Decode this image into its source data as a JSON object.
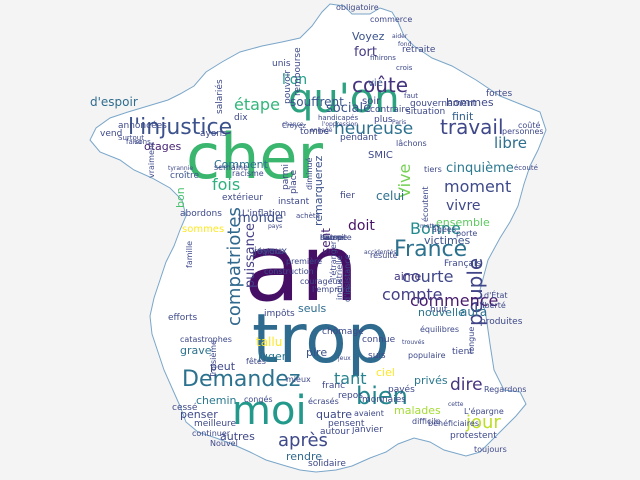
{
  "colors": {
    "background": "#f4f4f4",
    "map_fill": "#ffffff",
    "map_outline": "#7aa6c9"
  },
  "wordcloud": {
    "shape": "france-map",
    "words": [
      {
        "text": "cher",
        "color": "#3bb66f"
      },
      {
        "text": "an",
        "color": "#450f66"
      },
      {
        "text": "trop",
        "color": "#2e6b8e"
      },
      {
        "text": "moi",
        "color": "#22998b"
      },
      {
        "text": "qu'on",
        "color": "#2ca280"
      },
      {
        "text": "l'injustice",
        "color": "#3b528b"
      },
      {
        "text": "coûte",
        "color": "#46337e"
      },
      {
        "text": "travail",
        "color": "#3f4889"
      },
      {
        "text": "heureuse",
        "color": "#2d718e"
      },
      {
        "text": "bien",
        "color": "#23888e"
      },
      {
        "text": "Demandez",
        "color": "#2c728e"
      },
      {
        "text": "France",
        "color": "#2c728e"
      },
      {
        "text": "Bonne",
        "color": "#238a8d"
      },
      {
        "text": "peuple",
        "color": "#404587"
      },
      {
        "text": "compatriotes",
        "color": "#31688e"
      },
      {
        "text": "moment",
        "color": "#3e4a89"
      },
      {
        "text": "courte",
        "color": "#3f4788"
      },
      {
        "text": "commence",
        "color": "#481a6c"
      },
      {
        "text": "jour",
        "color": "#bddf26"
      },
      {
        "text": "dire",
        "color": "#46337e"
      },
      {
        "text": "tant",
        "color": "#26838f"
      },
      {
        "text": "après",
        "color": "#3e4989"
      },
      {
        "text": "compte",
        "color": "#423f85"
      },
      {
        "text": "étape",
        "color": "#32b67a"
      },
      {
        "text": "fois",
        "color": "#2db27d"
      },
      {
        "text": "cinquième",
        "color": "#2a788e"
      },
      {
        "text": "l'on",
        "color": "#1f9e89"
      },
      {
        "text": "sociale",
        "color": "#3a538b"
      },
      {
        "text": "fort",
        "color": "#443983"
      },
      {
        "text": "Voyez",
        "color": "#3b528b"
      },
      {
        "text": "libre",
        "color": "#2e6e8e"
      },
      {
        "text": "vivre",
        "color": "#3f4889"
      },
      {
        "text": "Vive",
        "color": "#75d054"
      },
      {
        "text": "puissance",
        "color": "#433e85"
      },
      {
        "text": "monde",
        "color": "#3c4f8a"
      },
      {
        "text": "doit",
        "color": "#471365"
      },
      {
        "text": "souffrent",
        "color": "#39568c"
      },
      {
        "text": "d'espoir",
        "color": "#2f6c8e"
      },
      {
        "text": "otages",
        "color": "#482475"
      },
      {
        "text": "Comment",
        "color": "#2c728e"
      },
      {
        "text": "celui",
        "color": "#2d708e"
      },
      {
        "text": "hommes",
        "color": "#3e4989"
      },
      {
        "text": "remarquerez",
        "color": "#3b528b"
      },
      {
        "text": "finit",
        "color": "#34618d"
      },
      {
        "text": "ensemble",
        "color": "#5ec962"
      },
      {
        "text": "victimes",
        "color": "#3b528b"
      },
      {
        "text": "aime",
        "color": "#453882"
      },
      {
        "text": "nouvelle",
        "color": "#2a768e"
      },
      {
        "text": "seuls",
        "color": "#2e6d8e"
      },
      {
        "text": "sent",
        "color": "#482677"
      },
      {
        "text": "tallu",
        "color": "#fde725"
      },
      {
        "text": "juger",
        "color": "#2a788e"
      },
      {
        "text": "pire",
        "color": "#3b528b"
      },
      {
        "text": "grave",
        "color": "#2c728e"
      },
      {
        "text": "peut",
        "color": "#3e4989"
      },
      {
        "text": "chemin",
        "color": "#2a788e"
      },
      {
        "text": "penser",
        "color": "#3e4a89"
      },
      {
        "text": "autres",
        "color": "#3f4788"
      },
      {
        "text": "rendre",
        "color": "#31688e"
      },
      {
        "text": "malades",
        "color": "#a5db36"
      },
      {
        "text": "quatre",
        "color": "#3e4a89"
      },
      {
        "text": "privés",
        "color": "#2a788e"
      },
      {
        "text": "aura",
        "color": "#2d718e"
      },
      {
        "text": "bon",
        "color": "#4ac16d"
      },
      {
        "text": "joyeux",
        "color": "#3e4989"
      },
      {
        "text": "sommes",
        "color": "#fde725"
      },
      {
        "text": "ciel",
        "color": "#fde725"
      },
      {
        "text": "vie",
        "color": "#3b528b"
      },
      {
        "text": "soir",
        "color": "#3e4a89"
      },
      {
        "text": "croître",
        "color": "#3a548c"
      },
      {
        "text": "pendant",
        "color": "#3e4a89"
      },
      {
        "text": "SMIC",
        "color": "#3e4989"
      },
      {
        "text": "dix",
        "color": "#3e4989"
      },
      {
        "text": "unis",
        "color": "#3e4989"
      },
      {
        "text": "tombé",
        "color": "#3e4989"
      },
      {
        "text": "ayons",
        "color": "#3e4989"
      },
      {
        "text": "annoncées",
        "color": "#3e4989"
      },
      {
        "text": "vend",
        "color": "#3e4989"
      },
      {
        "text": "extérieur",
        "color": "#3e4989"
      },
      {
        "text": "abordons",
        "color": "#3e4989"
      },
      {
        "text": "L'inflation",
        "color": "#3e4989"
      },
      {
        "text": "instant",
        "color": "#3e4989"
      },
      {
        "text": "parmi",
        "color": "#3e4989"
      },
      {
        "text": "place",
        "color": "#3e4989"
      },
      {
        "text": "Français",
        "color": "#3e4989"
      },
      {
        "text": "huit",
        "color": "#3e4989"
      },
      {
        "text": "produites",
        "color": "#3e4989"
      },
      {
        "text": "tient",
        "color": "#3e4989"
      },
      {
        "text": "protestent",
        "color": "#3e4989"
      },
      {
        "text": "cessé",
        "color": "#3e4989"
      },
      {
        "text": "meilleure",
        "color": "#3e4989"
      },
      {
        "text": "pensent",
        "color": "#3e4989"
      },
      {
        "text": "janvier",
        "color": "#3e4989"
      },
      {
        "text": "autour",
        "color": "#3e4989"
      },
      {
        "text": "solidaire",
        "color": "#3e4989"
      },
      {
        "text": "monnaies",
        "color": "#3e4989"
      },
      {
        "text": "repos",
        "color": "#3e4989"
      },
      {
        "text": "chômage",
        "color": "#3e4989"
      },
      {
        "text": "connue",
        "color": "#3e4989"
      },
      {
        "text": "suis",
        "color": "#3e4989"
      },
      {
        "text": "payés",
        "color": "#3e4989"
      },
      {
        "text": "franc",
        "color": "#3e4989"
      },
      {
        "text": "efforts",
        "color": "#3e4989"
      },
      {
        "text": "impôts",
        "color": "#3e4989"
      },
      {
        "text": "fier",
        "color": "#3e4989"
      },
      {
        "text": "fortes",
        "color": "#3e4989"
      },
      {
        "text": "plus",
        "color": "#3e4989"
      },
      {
        "text": "situation",
        "color": "#3e4989"
      },
      {
        "text": "gouvernement",
        "color": "#3e4989"
      },
      {
        "text": "contraire",
        "color": "#3e4989"
      },
      {
        "text": "rembourse",
        "color": "#3e4989"
      },
      {
        "text": "pouvoir",
        "color": "#3e4989"
      },
      {
        "text": "salariés",
        "color": "#3e4989"
      },
      {
        "text": "retraite",
        "color": "#3e4989"
      },
      {
        "text": "obligatoire",
        "color": "#3e4989"
      },
      {
        "text": "commerce",
        "color": "#3e4989"
      },
      {
        "text": "personnes",
        "color": "#3e4989"
      },
      {
        "text": "coûté",
        "color": "#3e4989"
      },
      {
        "text": "tiers",
        "color": "#3e4989"
      },
      {
        "text": "lâchons",
        "color": "#3e4989"
      },
      {
        "text": "semaine",
        "color": "#3e4989"
      },
      {
        "text": "diminué",
        "color": "#3e4989"
      },
      {
        "text": "vraiment",
        "color": "#3e4989"
      },
      {
        "text": "racisme",
        "color": "#3e4989"
      },
      {
        "text": "achète",
        "color": "#3e4989"
      },
      {
        "text": "écoutent",
        "color": "#3e4989"
      },
      {
        "text": "âgées",
        "color": "#3e4989"
      },
      {
        "text": "construction",
        "color": "#3e4989"
      },
      {
        "text": "famille",
        "color": "#3e4989"
      },
      {
        "text": "régions",
        "color": "#3e4989"
      },
      {
        "text": "l'étranger",
        "color": "#3e4989"
      },
      {
        "text": "courageux",
        "color": "#3e4989"
      },
      {
        "text": "industrielle",
        "color": "#3e4989"
      },
      {
        "text": "d'insistance",
        "color": "#3e4989"
      },
      {
        "text": "l'emprunt",
        "color": "#3e4989"
      },
      {
        "text": "première",
        "color": "#3e4989"
      },
      {
        "text": "populaire",
        "color": "#3e4989"
      },
      {
        "text": "équilibres",
        "color": "#3e4989"
      },
      {
        "text": "longue",
        "color": "#3e4989"
      },
      {
        "text": "L'épargne",
        "color": "#3e4989"
      },
      {
        "text": "Regardons",
        "color": "#3e4989"
      },
      {
        "text": "toujours",
        "color": "#3e4989"
      },
      {
        "text": "bénéficiaires",
        "color": "#3e4989"
      },
      {
        "text": "difficile",
        "color": "#3e4989"
      },
      {
        "text": "liberté",
        "color": "#3e4989"
      },
      {
        "text": "d'État",
        "color": "#3e4989"
      },
      {
        "text": "porte",
        "color": "#3e4989"
      },
      {
        "text": "résulte",
        "color": "#3e4989"
      },
      {
        "text": "fêtes",
        "color": "#3e4989"
      },
      {
        "text": "congés",
        "color": "#3e4989"
      },
      {
        "text": "mieux",
        "color": "#3e4989"
      },
      {
        "text": "écrasés",
        "color": "#3e4989"
      },
      {
        "text": "catastrophes",
        "color": "#3e4989"
      },
      {
        "text": "Troisième",
        "color": "#3e4989"
      },
      {
        "text": "continuer",
        "color": "#3e4989"
      },
      {
        "text": "Nouvel",
        "color": "#3e4989"
      },
      {
        "text": "avaient",
        "color": "#3e4989"
      },
      {
        "text": "faisons",
        "color": "#3e4989"
      },
      {
        "text": "Surtout",
        "color": "#3e4989"
      },
      {
        "text": "finirons",
        "color": "#3e4989"
      },
      {
        "text": "Croyez",
        "color": "#3e4989"
      },
      {
        "text": "faut",
        "color": "#3e4989"
      },
      {
        "text": "chance",
        "color": "#3e4989"
      },
      {
        "text": "handicapés",
        "color": "#3e4989"
      },
      {
        "text": "l'oppression",
        "color": "#3e4989"
      },
      {
        "text": "engagé",
        "color": "#3e4989"
      },
      {
        "text": "aider",
        "color": "#3e4989"
      },
      {
        "text": "Paris",
        "color": "#3e4989"
      },
      {
        "text": "écouté",
        "color": "#3e4989"
      },
      {
        "text": "vu",
        "color": "#3e4989"
      },
      {
        "text": "tyrannie",
        "color": "#3e4989"
      },
      {
        "text": "accidentés",
        "color": "#3e4989"
      },
      {
        "text": "pays",
        "color": "#3e4989"
      },
      {
        "text": "jeux",
        "color": "#3e4989"
      },
      {
        "text": "trouvés",
        "color": "#3e4989"
      },
      {
        "text": "cette",
        "color": "#3e4989"
      },
      {
        "text": "mettre",
        "color": "#3e4989"
      },
      {
        "text": "crois",
        "color": "#3e4989"
      },
      {
        "text": "fond",
        "color": "#3e4989"
      },
      {
        "text": "réussite",
        "color": "#3e4989"
      },
      {
        "text": "entre",
        "color": "#3e4989"
      },
      {
        "text": "l'ampe",
        "color": "#3e4989"
      },
      {
        "text": "heure",
        "color": "#3e4989"
      }
    ]
  }
}
